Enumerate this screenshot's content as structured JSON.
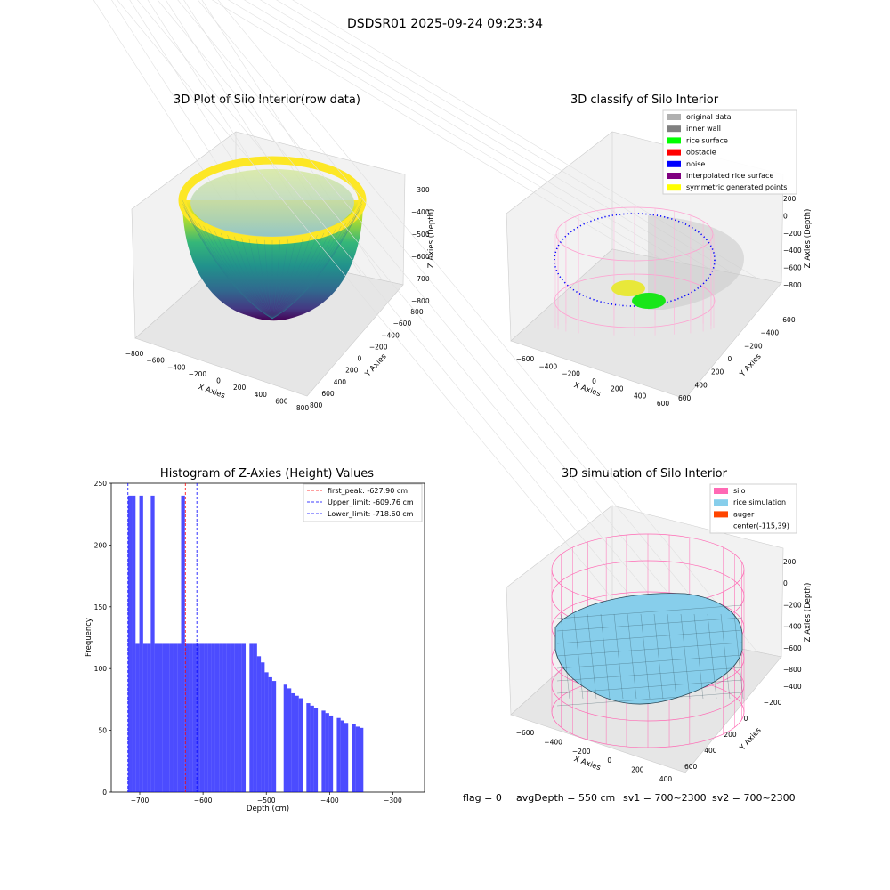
{
  "figure": {
    "suptitle": "DSDSR01 2025-09-24 09:23:34",
    "footer": {
      "flag": "flag = 0",
      "avg": "avgDepth = 550 cm",
      "sv1": "sv1 = 700~2300",
      "sv2": "sv2 = 700~2300"
    }
  },
  "panels": {
    "raw": {
      "title": "3D Plot of Silo Interior(row data)",
      "xlabel": "X Axies",
      "ylabel": "Y Axies",
      "zlabel": "Z Axies (Depth)",
      "xticks": [
        "−800",
        "−600",
        "−400",
        "−200",
        "0",
        "200",
        "400",
        "600",
        "800"
      ],
      "yticks": [
        "800",
        "600",
        "400",
        "200",
        "0",
        "−200",
        "−400",
        "−600",
        "−800"
      ],
      "zticks": [
        "−300",
        "−400",
        "−500",
        "−600",
        "−700",
        "−800"
      ],
      "colormap": "viridis"
    },
    "classify": {
      "title": "3D classify of Silo Interior",
      "xlabel": "X Axies",
      "ylabel": "Y Axies",
      "zlabel": "Z Axies (Depth)",
      "xticks": [
        "−600",
        "−400",
        "−200",
        "0",
        "200",
        "400",
        "600"
      ],
      "yticks": [
        "600",
        "400",
        "200",
        "0",
        "−200",
        "−400",
        "−600"
      ],
      "zticks": [
        "200",
        "0",
        "−200",
        "−400",
        "−600",
        "−800"
      ],
      "legend": [
        {
          "label": "original data",
          "color": "#b0b0b0"
        },
        {
          "label": "inner wall",
          "color": "#808080"
        },
        {
          "label": "rice surface",
          "color": "#00ff00"
        },
        {
          "label": "obstacle",
          "color": "#ff0000"
        },
        {
          "label": "noise",
          "color": "#0000ff"
        },
        {
          "label": "interpolated rice surface",
          "color": "#800080"
        },
        {
          "label": "symmetric generated points",
          "color": "#ffff00"
        }
      ]
    },
    "sim": {
      "title": "3D simulation of Silo Interior",
      "xlabel": "X Axies",
      "ylabel": "Y Axies",
      "zlabel": "Z Axies (Depth)",
      "xticks": [
        "−600",
        "−400",
        "−200",
        "0",
        "200",
        "400"
      ],
      "yticks": [
        "600",
        "400",
        "200",
        "0",
        "−200",
        "−400"
      ],
      "zticks": [
        "200",
        "0",
        "−200",
        "−400",
        "−600",
        "−800"
      ],
      "legend": [
        {
          "label": "silo",
          "color": "#ff69b4"
        },
        {
          "label": "rice simulation",
          "color": "#87ceeb"
        },
        {
          "label": "auger",
          "color": "#ff4500"
        },
        {
          "label": "center(-115,39)",
          "color": ""
        }
      ]
    }
  },
  "chart_data": [
    {
      "type": "bar",
      "title": "Histogram of Z-Axies (Height) Values",
      "xlabel": "Depth (cm)",
      "ylabel": "Frequency",
      "xlim": [
        -745,
        -250
      ],
      "ylim": [
        0,
        250
      ],
      "xticks": [
        -700,
        -600,
        -500,
        -400,
        -300
      ],
      "xtick_labels": [
        "−700",
        "−600",
        "−500",
        "−400",
        "−300"
      ],
      "yticks": [
        0,
        50,
        100,
        150,
        200,
        250
      ],
      "bar_color": "#0000ff",
      "bins": [
        {
          "x0": -718.6,
          "x1": -712.6,
          "value": 240
        },
        {
          "x0": -712.6,
          "x1": -706.6,
          "value": 240
        },
        {
          "x0": -706.6,
          "x1": -700.6,
          "value": 120
        },
        {
          "x0": -700.6,
          "x1": -694.6,
          "value": 240
        },
        {
          "x0": -694.6,
          "x1": -688.6,
          "value": 120
        },
        {
          "x0": -688.6,
          "x1": -682.6,
          "value": 120
        },
        {
          "x0": -682.6,
          "x1": -676.6,
          "value": 240
        },
        {
          "x0": -676.6,
          "x1": -670.6,
          "value": 120
        },
        {
          "x0": -670.6,
          "x1": -664.6,
          "value": 120
        },
        {
          "x0": -664.6,
          "x1": -658.6,
          "value": 120
        },
        {
          "x0": -658.6,
          "x1": -652.6,
          "value": 120
        },
        {
          "x0": -652.6,
          "x1": -646.6,
          "value": 120
        },
        {
          "x0": -646.6,
          "x1": -640.6,
          "value": 120
        },
        {
          "x0": -640.6,
          "x1": -634.6,
          "value": 120
        },
        {
          "x0": -634.6,
          "x1": -628.6,
          "value": 240
        },
        {
          "x0": -628.6,
          "x1": -622.6,
          "value": 120
        },
        {
          "x0": -622.6,
          "x1": -616.6,
          "value": 120
        },
        {
          "x0": -616.6,
          "x1": -610.6,
          "value": 120
        },
        {
          "x0": -610.6,
          "x1": -604.6,
          "value": 120
        },
        {
          "x0": -604.6,
          "x1": -598.6,
          "value": 120
        },
        {
          "x0": -598.6,
          "x1": -592.6,
          "value": 120
        },
        {
          "x0": -592.6,
          "x1": -586.6,
          "value": 120
        },
        {
          "x0": -586.6,
          "x1": -580.6,
          "value": 120
        },
        {
          "x0": -580.6,
          "x1": -574.6,
          "value": 120
        },
        {
          "x0": -574.6,
          "x1": -568.6,
          "value": 120
        },
        {
          "x0": -568.6,
          "x1": -562.6,
          "value": 120
        },
        {
          "x0": -562.6,
          "x1": -556.6,
          "value": 120
        },
        {
          "x0": -556.6,
          "x1": -550.6,
          "value": 120
        },
        {
          "x0": -550.6,
          "x1": -544.6,
          "value": 120
        },
        {
          "x0": -544.6,
          "x1": -538.6,
          "value": 120
        },
        {
          "x0": -538.6,
          "x1": -532.6,
          "value": 120
        },
        {
          "x0": -532.6,
          "x1": -526.6,
          "value": 0
        },
        {
          "x0": -526.6,
          "x1": -520.6,
          "value": 120
        },
        {
          "x0": -520.6,
          "x1": -514.6,
          "value": 120
        },
        {
          "x0": -514.6,
          "x1": -508.6,
          "value": 110
        },
        {
          "x0": -508.6,
          "x1": -502.6,
          "value": 105
        },
        {
          "x0": -502.6,
          "x1": -496.6,
          "value": 97
        },
        {
          "x0": -496.6,
          "x1": -490.6,
          "value": 93
        },
        {
          "x0": -490.6,
          "x1": -484.6,
          "value": 90
        },
        {
          "x0": -484.6,
          "x1": -478.6,
          "value": 0
        },
        {
          "x0": -478.6,
          "x1": -472.6,
          "value": 0
        },
        {
          "x0": -472.6,
          "x1": -466.6,
          "value": 87
        },
        {
          "x0": -466.6,
          "x1": -460.6,
          "value": 84
        },
        {
          "x0": -460.6,
          "x1": -454.6,
          "value": 80
        },
        {
          "x0": -454.6,
          "x1": -448.6,
          "value": 78
        },
        {
          "x0": -448.6,
          "x1": -442.6,
          "value": 76
        },
        {
          "x0": -442.6,
          "x1": -436.6,
          "value": 0
        },
        {
          "x0": -436.6,
          "x1": -430.6,
          "value": 72
        },
        {
          "x0": -430.6,
          "x1": -424.6,
          "value": 70
        },
        {
          "x0": -424.6,
          "x1": -418.6,
          "value": 68
        },
        {
          "x0": -418.6,
          "x1": -412.6,
          "value": 0
        },
        {
          "x0": -412.6,
          "x1": -406.6,
          "value": 66
        },
        {
          "x0": -406.6,
          "x1": -400.6,
          "value": 64
        },
        {
          "x0": -400.6,
          "x1": -394.6,
          "value": 62
        },
        {
          "x0": -394.6,
          "x1": -388.6,
          "value": 0
        },
        {
          "x0": -388.6,
          "x1": -382.6,
          "value": 60
        },
        {
          "x0": -382.6,
          "x1": -376.6,
          "value": 58
        },
        {
          "x0": -376.6,
          "x1": -370.6,
          "value": 56
        },
        {
          "x0": -370.6,
          "x1": -364.6,
          "value": 0
        },
        {
          "x0": -364.6,
          "x1": -358.6,
          "value": 55
        },
        {
          "x0": -358.6,
          "x1": -352.6,
          "value": 53
        },
        {
          "x0": -352.6,
          "x1": -346.6,
          "value": 52
        }
      ],
      "vlines": [
        {
          "label": "first_peak: -627.90 cm",
          "x": -627.9,
          "color": "#ff0000"
        },
        {
          "label": "Upper_limit: -609.76 cm",
          "x": -609.76,
          "color": "#0000ff"
        },
        {
          "label": "Lower_limit: -718.60 cm",
          "x": -718.6,
          "color": "#0000ff"
        }
      ],
      "legend_position": "top-right",
      "grid": false
    }
  ]
}
